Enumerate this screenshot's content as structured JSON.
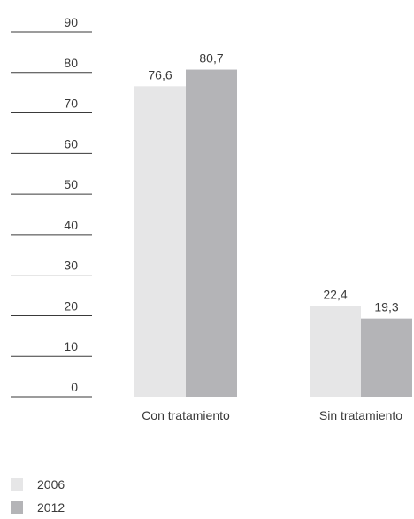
{
  "chart_data": {
    "type": "bar",
    "categories": [
      "Con tratamiento",
      "Sin tratamiento"
    ],
    "series": [
      {
        "name": "2006",
        "values": [
          76.6,
          22.4
        ],
        "labels": [
          "76,6",
          "22,4"
        ],
        "color": "#e6e6e7"
      },
      {
        "name": "2012",
        "values": [
          80.7,
          19.3
        ],
        "labels": [
          "80,7",
          "19,3"
        ],
        "color": "#b4b4b7"
      }
    ],
    "yticks": [
      "0",
      "10",
      "20",
      "30",
      "40",
      "50",
      "60",
      "70",
      "80",
      "90"
    ],
    "ylim": [
      0,
      90
    ],
    "grid": false,
    "legend_position": "bottom-left"
  }
}
